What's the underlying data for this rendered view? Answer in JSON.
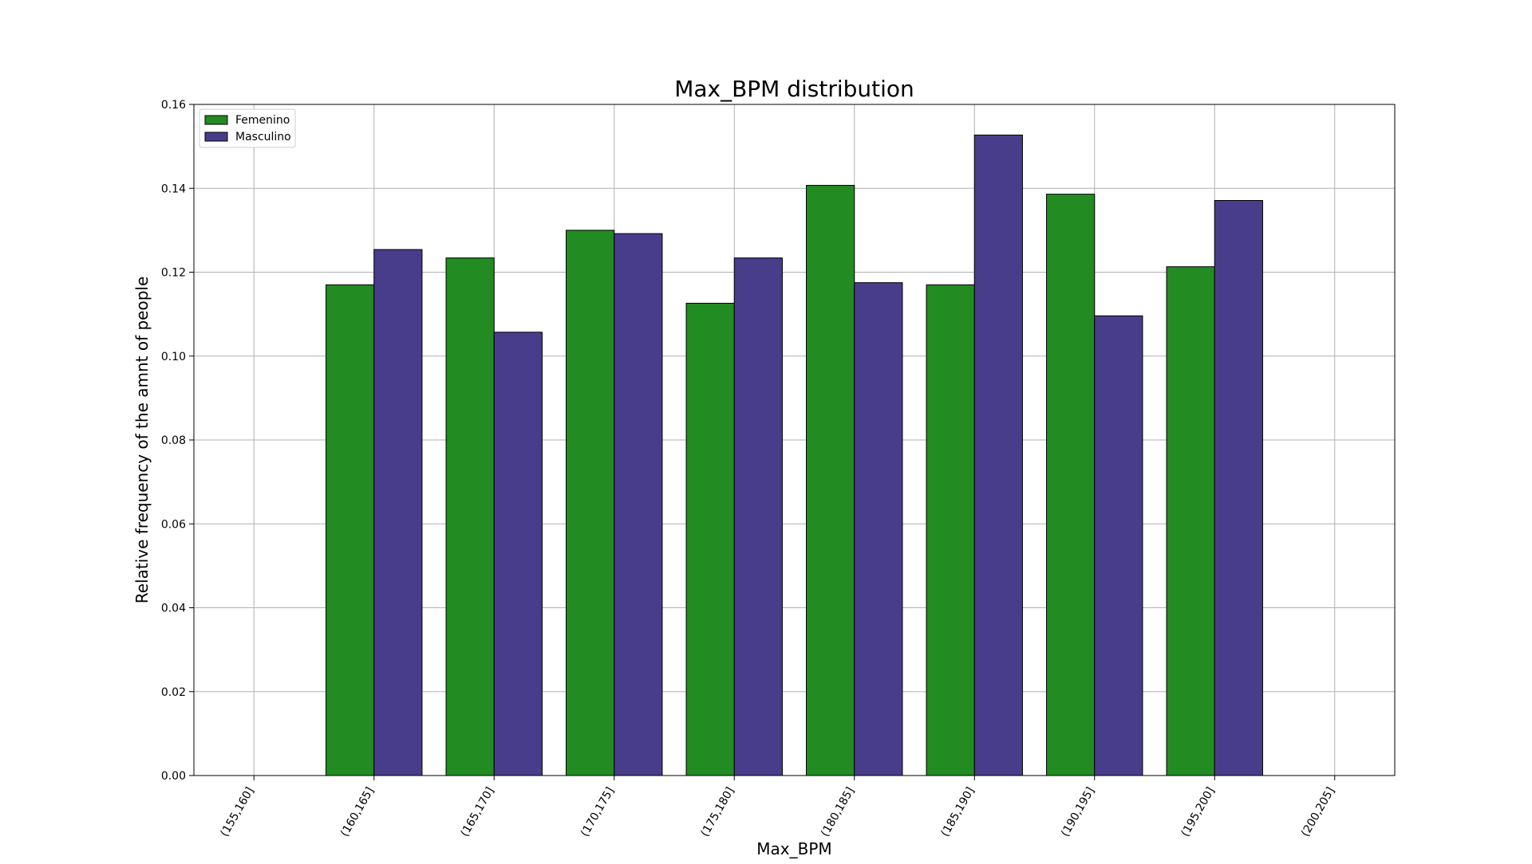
{
  "chart_data": {
    "type": "bar",
    "title": "Max_BPM distribution",
    "xlabel": "Max_BPM",
    "ylabel": "Relative frequency of the amnt of people",
    "categories": [
      "(155,160]",
      "(160,165]",
      "(165,170]",
      "(170,175]",
      "(175,180]",
      "(180,185]",
      "(185,190]",
      "(190,195]",
      "(195,200]",
      "(200,205]"
    ],
    "series": [
      {
        "name": "Femenino",
        "color": "#228b22",
        "values": [
          0.0,
          0.117,
          0.1234,
          0.13,
          0.1126,
          0.1407,
          0.117,
          0.1386,
          0.1213,
          0.0
        ]
      },
      {
        "name": "Masculino",
        "color": "#483d8b",
        "values": [
          0.0,
          0.1254,
          0.1057,
          0.1292,
          0.1234,
          0.1175,
          0.1527,
          0.1096,
          0.1371,
          0.0
        ]
      }
    ],
    "ylim": [
      0,
      0.16
    ],
    "yticks": [
      "0.00",
      "0.02",
      "0.04",
      "0.06",
      "0.08",
      "0.10",
      "0.12",
      "0.14",
      "0.16"
    ],
    "grid": true,
    "legend_position": "top-left"
  }
}
